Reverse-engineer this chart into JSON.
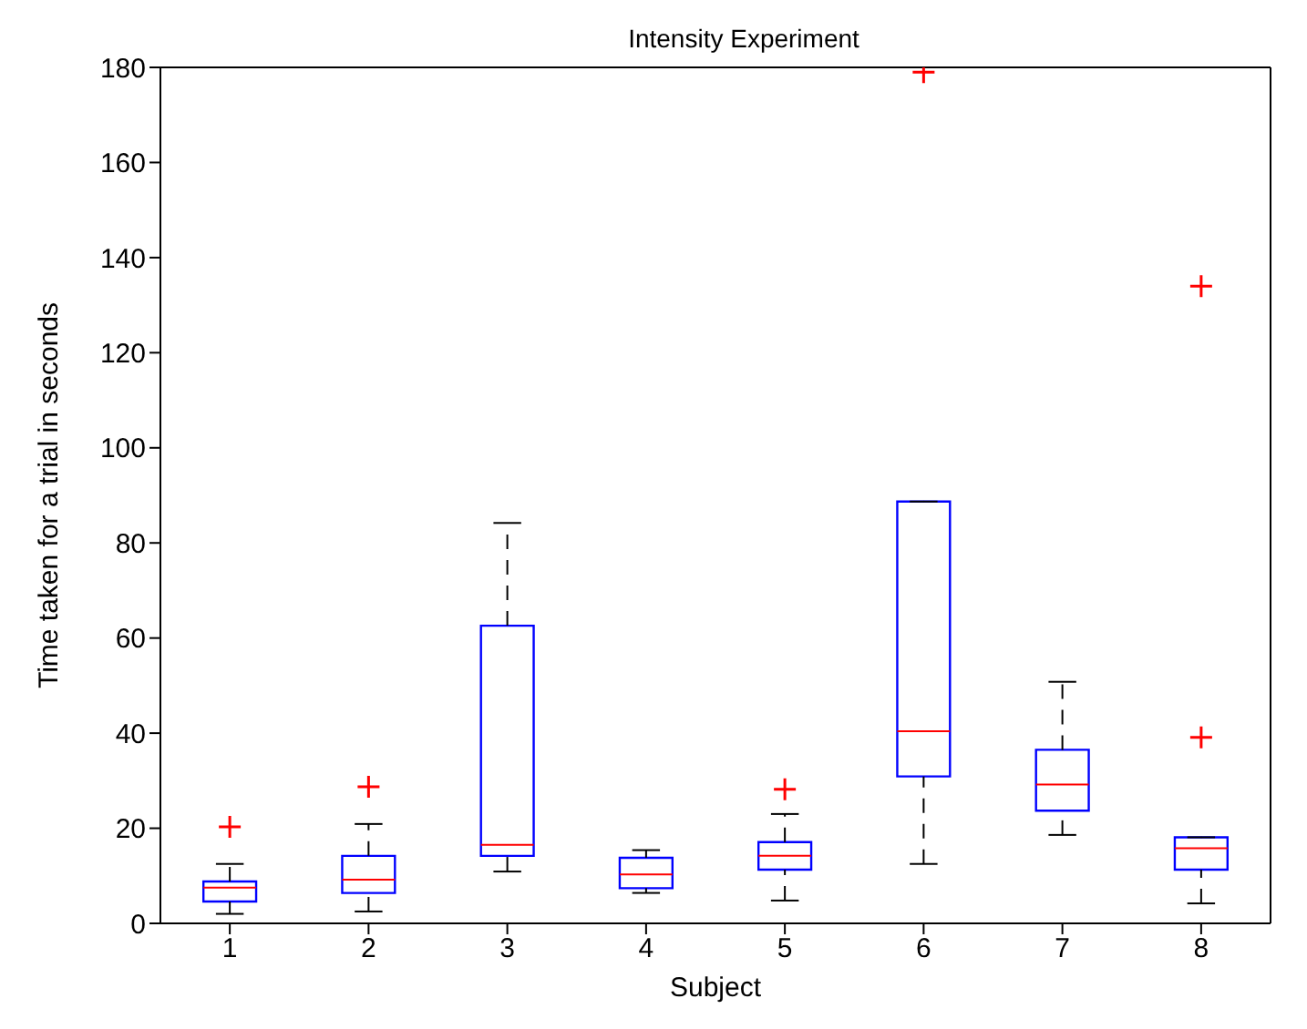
{
  "chart_data": {
    "type": "box",
    "title": "Intensity Experiment",
    "xlabel": "Subject",
    "ylabel": "Time taken for a trial in seconds",
    "categories": [
      "1",
      "2",
      "3",
      "4",
      "5",
      "6",
      "7",
      "8"
    ],
    "series": [
      {
        "color": "#0000ff",
        "boxes": [
          {
            "low": 2,
            "q1": 4.6,
            "median": 7.5,
            "q3": 8.8,
            "high": 12.5,
            "outliers": [
              20.3
            ]
          },
          {
            "low": 2.5,
            "q1": 6.4,
            "median": 9.2,
            "q3": 14.2,
            "high": 20.9,
            "outliers": [
              28.7
            ]
          },
          {
            "low": 10.9,
            "q1": 14.2,
            "median": 16.5,
            "q3": 62.6,
            "high": 84.2
          },
          {
            "low": 6.4,
            "q1": 7.4,
            "median": 10.3,
            "q3": 13.8,
            "high": 15.4
          },
          {
            "low": 4.8,
            "q1": 11.3,
            "median": 14.2,
            "q3": 17.1,
            "high": 23,
            "outliers": [
              28.2
            ]
          },
          {
            "low": 12.5,
            "q1": 30.9,
            "median": 40.4,
            "q3": 88.7,
            "high": 88.7,
            "outliers": [
              179
            ]
          },
          {
            "low": 18.6,
            "q1": 23.7,
            "median": 29.2,
            "q3": 36.5,
            "high": 50.8
          },
          {
            "low": 4.2,
            "q1": 11.3,
            "median": 15.8,
            "q3": 18.1,
            "high": 18.1,
            "outliers": [
              39.1,
              134
            ]
          }
        ]
      }
    ],
    "ylim": [
      0,
      180
    ],
    "yticks": [
      0,
      20,
      40,
      60,
      80,
      100,
      120,
      140,
      160,
      180
    ],
    "marker": "cross"
  }
}
